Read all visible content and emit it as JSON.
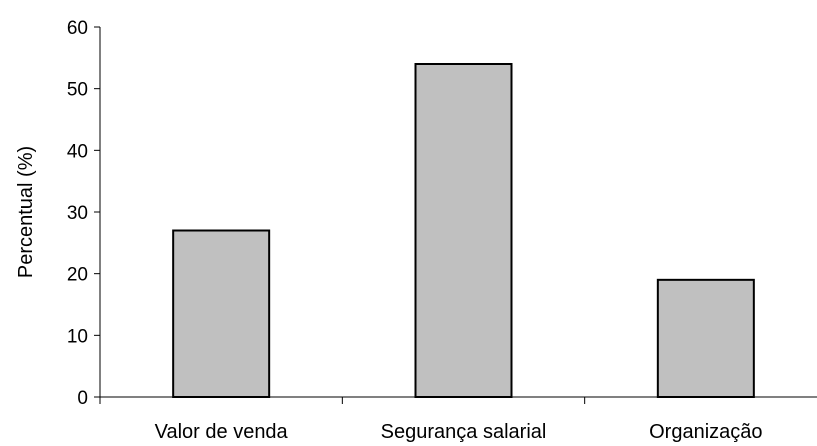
{
  "chart_data": {
    "type": "bar",
    "categories": [
      "Valor de venda",
      "Segurança salarial",
      "Organização"
    ],
    "values": [
      27,
      54,
      19
    ],
    "ylabel": "Percentual (%)",
    "xlabel": "",
    "ylim": [
      0,
      60
    ],
    "yticks": [
      0,
      10,
      20,
      30,
      40,
      50,
      60
    ],
    "grid": false,
    "bar_color": "#c0c0c0",
    "bar_edge_color": "#000000"
  }
}
